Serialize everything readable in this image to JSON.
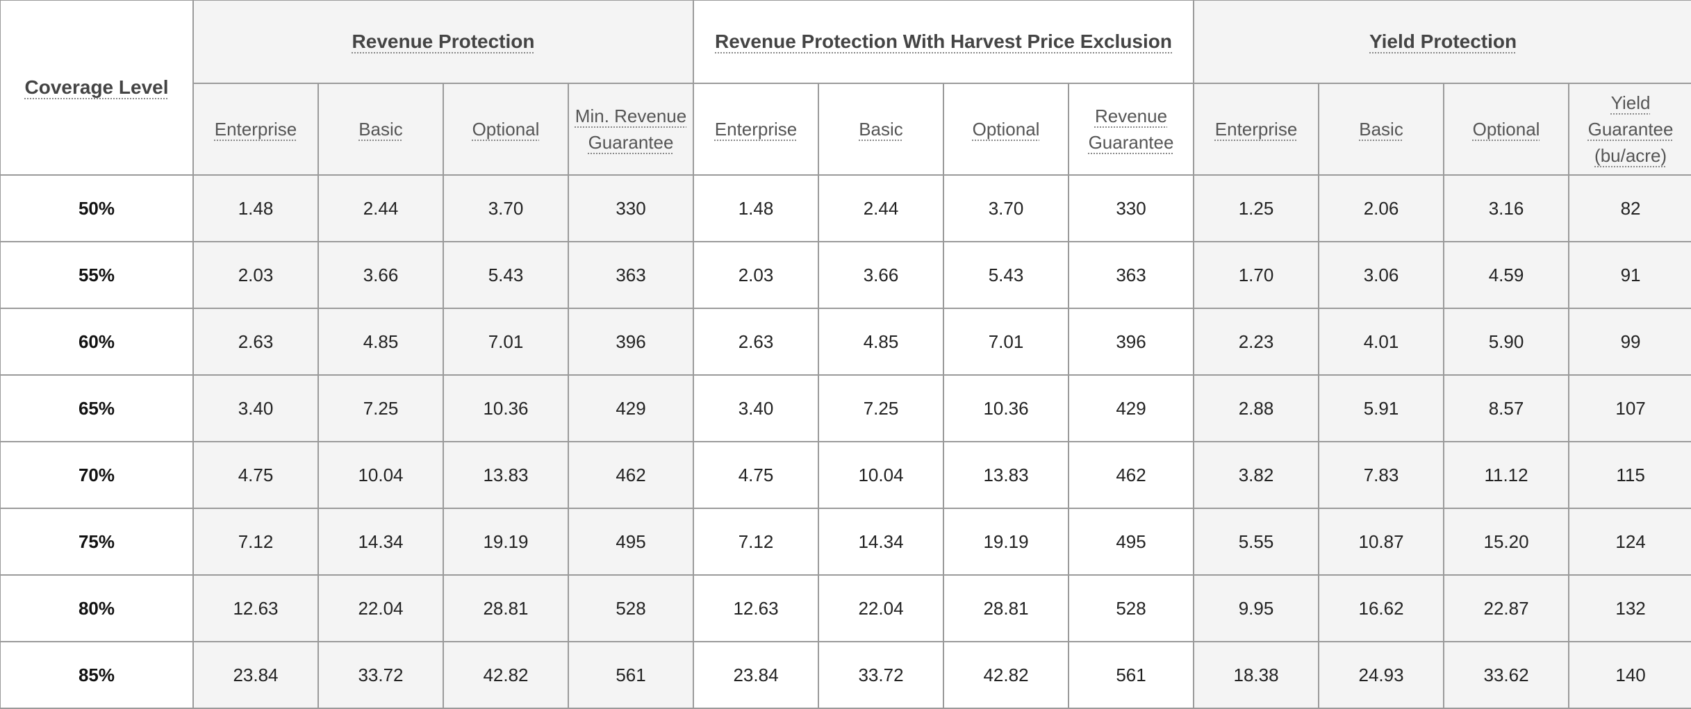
{
  "header": {
    "coverage_level": "Coverage Level",
    "groups": [
      "Revenue Protection",
      "Revenue Protection With Harvest Price Exclusion",
      "Yield Protection"
    ],
    "subheads": [
      "Enterprise",
      "Basic",
      "Optional",
      "Min. Revenue Guarantee",
      "Enterprise",
      "Basic",
      "Optional",
      "Revenue Guarantee",
      "Enterprise",
      "Basic",
      "Optional",
      "Yield Guarantee (bu/acre)"
    ]
  },
  "rows": [
    {
      "level": "50%",
      "cells": [
        "1.48",
        "2.44",
        "3.70",
        "330",
        "1.48",
        "2.44",
        "3.70",
        "330",
        "1.25",
        "2.06",
        "3.16",
        "82"
      ]
    },
    {
      "level": "55%",
      "cells": [
        "2.03",
        "3.66",
        "5.43",
        "363",
        "2.03",
        "3.66",
        "5.43",
        "363",
        "1.70",
        "3.06",
        "4.59",
        "91"
      ]
    },
    {
      "level": "60%",
      "cells": [
        "2.63",
        "4.85",
        "7.01",
        "396",
        "2.63",
        "4.85",
        "7.01",
        "396",
        "2.23",
        "4.01",
        "5.90",
        "99"
      ]
    },
    {
      "level": "65%",
      "cells": [
        "3.40",
        "7.25",
        "10.36",
        "429",
        "3.40",
        "7.25",
        "10.36",
        "429",
        "2.88",
        "5.91",
        "8.57",
        "107"
      ]
    },
    {
      "level": "70%",
      "cells": [
        "4.75",
        "10.04",
        "13.83",
        "462",
        "4.75",
        "10.04",
        "13.83",
        "462",
        "3.82",
        "7.83",
        "11.12",
        "115"
      ]
    },
    {
      "level": "75%",
      "cells": [
        "7.12",
        "14.34",
        "19.19",
        "495",
        "7.12",
        "14.34",
        "19.19",
        "495",
        "5.55",
        "10.87",
        "15.20",
        "124"
      ]
    },
    {
      "level": "80%",
      "cells": [
        "12.63",
        "22.04",
        "28.81",
        "528",
        "12.63",
        "22.04",
        "28.81",
        "528",
        "9.95",
        "16.62",
        "22.87",
        "132"
      ]
    },
    {
      "level": "85%",
      "cells": [
        "23.84",
        "33.72",
        "42.82",
        "561",
        "23.84",
        "33.72",
        "42.82",
        "561",
        "18.38",
        "24.93",
        "33.62",
        "140"
      ]
    }
  ],
  "colors": {
    "border": "#9a9a9a",
    "shaded_cell": "#f4f4f4",
    "white_cell": "#ffffff",
    "header_text": "#444444"
  }
}
